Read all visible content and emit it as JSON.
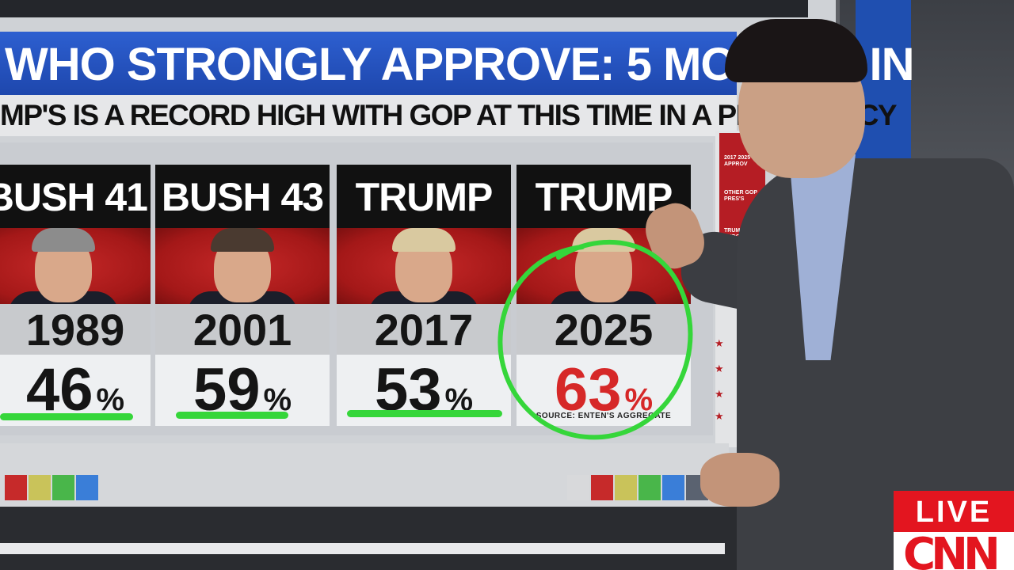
{
  "graphic": {
    "headline": "WHO STRONGLY APPROVE: 5 MONTHS IN",
    "subheadline": "MP'S IS A RECORD HIGH WITH GOP AT THIS TIME IN A PRESIDENCY",
    "cards": [
      {
        "name": "BUSH 41",
        "year": "1989",
        "value": "46",
        "unit": "%"
      },
      {
        "name": "BUSH 43",
        "year": "2001",
        "value": "59",
        "unit": "%"
      },
      {
        "name": "TRUMP",
        "year": "2017",
        "value": "53",
        "unit": "%"
      },
      {
        "name": "TRUMP",
        "year": "2025",
        "value": "63",
        "unit": "%"
      }
    ],
    "source": "SOURCE: ENTEN'S AGGREGATE",
    "sidebar": {
      "items": [
        "2017 2025 APPROV",
        "OTHER GOP PRES'S",
        "TRUMP ENDORS WIN"
      ]
    },
    "colors": {
      "headline_blue": "#2d5fd0",
      "highlight_red": "#d62828",
      "annotation_green": "#35d63a"
    }
  },
  "broadcast": {
    "live_label": "LIVE",
    "network_logo": "CNN"
  }
}
